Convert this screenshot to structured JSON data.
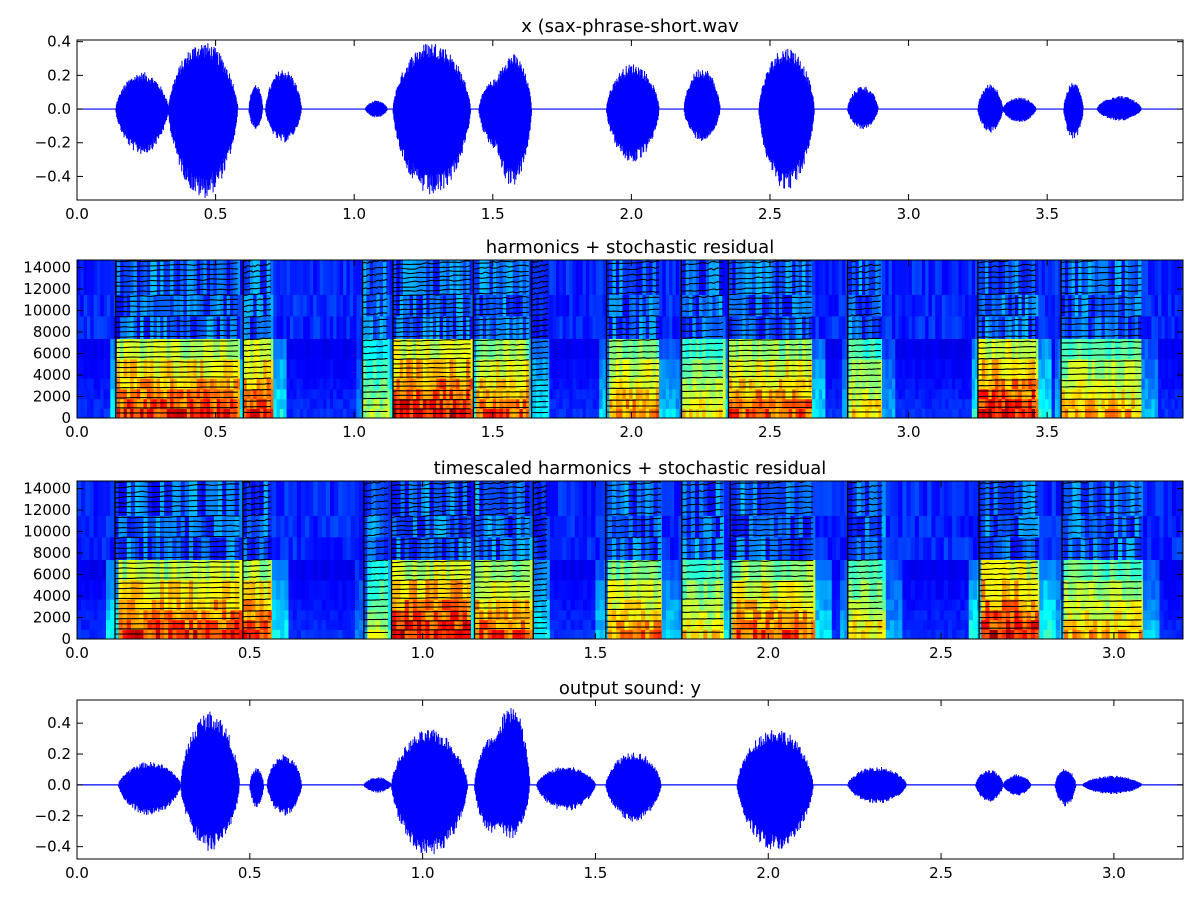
{
  "colors": {
    "waveform": "#0000ff",
    "harmonic_tracks": "#000000",
    "colormap": [
      "#00007f",
      "#0000ff",
      "#0080ff",
      "#00ffff",
      "#80ff80",
      "#ffff00",
      "#ff8000",
      "#ff0000",
      "#7f0000"
    ],
    "axes_frame": "#000000",
    "background": "#ffffff"
  },
  "chart_data": [
    {
      "id": "input",
      "type": "line",
      "title": "x (sax-phrase-short.wav",
      "xlabel": "",
      "ylabel": "",
      "xlim": [
        0,
        3.99
      ],
      "ylim": [
        -0.54,
        0.41
      ],
      "x_ticks": [
        0.0,
        0.5,
        1.0,
        1.5,
        2.0,
        2.5,
        3.0,
        3.5
      ],
      "x_tick_labels": [
        "0.0",
        "0.5",
        "1.0",
        "1.5",
        "2.0",
        "2.5",
        "3.0",
        "3.5"
      ],
      "y_ticks": [
        0.4,
        0.2,
        0.0,
        -0.2,
        -0.4
      ],
      "y_tick_labels": [
        "0.4",
        "0.2",
        "0.0",
        "−0.2",
        "−0.4"
      ],
      "grid": false,
      "envelope_segments": [
        {
          "start": 0.14,
          "end": 0.33,
          "peak": 0.22,
          "trough": -0.27
        },
        {
          "start": 0.33,
          "end": 0.58,
          "peak": 0.4,
          "trough": -0.53
        },
        {
          "start": 0.62,
          "end": 0.67,
          "peak": 0.15,
          "trough": -0.12
        },
        {
          "start": 0.68,
          "end": 0.81,
          "peak": 0.24,
          "trough": -0.2
        },
        {
          "start": 1.04,
          "end": 1.12,
          "peak": 0.05,
          "trough": -0.05
        },
        {
          "start": 1.14,
          "end": 1.42,
          "peak": 0.4,
          "trough": -0.52
        },
        {
          "start": 1.45,
          "end": 1.58,
          "peak": 0.18,
          "trough": -0.24
        },
        {
          "start": 1.5,
          "end": 1.64,
          "peak": 0.33,
          "trough": -0.46
        },
        {
          "start": 1.91,
          "end": 2.1,
          "peak": 0.27,
          "trough": -0.32
        },
        {
          "start": 2.19,
          "end": 2.32,
          "peak": 0.25,
          "trough": -0.19
        },
        {
          "start": 2.46,
          "end": 2.66,
          "peak": 0.37,
          "trough": -0.48
        },
        {
          "start": 2.78,
          "end": 2.89,
          "peak": 0.14,
          "trough": -0.12
        },
        {
          "start": 3.25,
          "end": 3.34,
          "peak": 0.15,
          "trough": -0.14
        },
        {
          "start": 3.34,
          "end": 3.46,
          "peak": 0.07,
          "trough": -0.08
        },
        {
          "start": 3.56,
          "end": 3.63,
          "peak": 0.16,
          "trough": -0.18
        },
        {
          "start": 3.68,
          "end": 3.84,
          "peak": 0.08,
          "trough": -0.07
        }
      ]
    },
    {
      "id": "harmonics",
      "type": "heatmap",
      "title": "harmonics + stochastic residual",
      "xlabel": "",
      "ylabel": "",
      "xlim": [
        0,
        3.99
      ],
      "ylim": [
        0,
        14700
      ],
      "x_ticks": [
        0.0,
        0.5,
        1.0,
        1.5,
        2.0,
        2.5,
        3.0,
        3.5
      ],
      "x_tick_labels": [
        "0.0",
        "0.5",
        "1.0",
        "1.5",
        "2.0",
        "2.5",
        "3.0",
        "3.5"
      ],
      "y_ticks": [
        0,
        2000,
        4000,
        6000,
        8000,
        10000,
        12000,
        14000
      ],
      "y_tick_labels": [
        "0",
        "2000",
        "4000",
        "6000",
        "8000",
        "10000",
        "12000",
        "14000"
      ],
      "grid": false,
      "notes_segments": [
        {
          "start": 0.14,
          "end": 0.58,
          "f0": 470,
          "level": 0.9
        },
        {
          "start": 0.6,
          "end": 0.7,
          "f0": 520,
          "level": 0.9
        },
        {
          "start": 1.03,
          "end": 1.12,
          "f0": 600,
          "level": 0.6
        },
        {
          "start": 1.14,
          "end": 1.42,
          "f0": 420,
          "level": 0.95
        },
        {
          "start": 1.43,
          "end": 1.63,
          "f0": 480,
          "level": 0.85
        },
        {
          "start": 1.64,
          "end": 1.7,
          "f0": 500,
          "level": 0.4
        },
        {
          "start": 1.91,
          "end": 2.1,
          "f0": 550,
          "level": 0.8
        },
        {
          "start": 2.18,
          "end": 2.33,
          "f0": 620,
          "level": 0.7
        },
        {
          "start": 2.35,
          "end": 2.65,
          "f0": 480,
          "level": 0.85
        },
        {
          "start": 2.78,
          "end": 2.9,
          "f0": 560,
          "level": 0.7
        },
        {
          "start": 3.25,
          "end": 3.46,
          "f0": 500,
          "level": 0.95
        },
        {
          "start": 3.55,
          "end": 3.84,
          "f0": 580,
          "level": 0.75
        }
      ]
    },
    {
      "id": "timescaled",
      "type": "heatmap",
      "title": "timescaled harmonics + stochastic residual",
      "xlabel": "",
      "ylabel": "",
      "xlim": [
        0,
        3.2
      ],
      "ylim": [
        0,
        14700
      ],
      "x_ticks": [
        0.0,
        0.5,
        1.0,
        1.5,
        2.0,
        2.5,
        3.0
      ],
      "x_tick_labels": [
        "0.0",
        "0.5",
        "1.0",
        "1.5",
        "2.0",
        "2.5",
        "3.0"
      ],
      "y_ticks": [
        0,
        2000,
        4000,
        6000,
        8000,
        10000,
        12000,
        14000
      ],
      "y_tick_labels": [
        "0",
        "2000",
        "4000",
        "6000",
        "8000",
        "10000",
        "12000",
        "14000"
      ],
      "grid": false,
      "notes_segments": [
        {
          "start": 0.11,
          "end": 0.47,
          "f0": 470,
          "level": 0.9
        },
        {
          "start": 0.48,
          "end": 0.56,
          "f0": 520,
          "level": 0.9
        },
        {
          "start": 0.83,
          "end": 0.9,
          "f0": 600,
          "level": 0.6
        },
        {
          "start": 0.91,
          "end": 1.14,
          "f0": 420,
          "level": 0.95
        },
        {
          "start": 1.15,
          "end": 1.31,
          "f0": 480,
          "level": 0.85
        },
        {
          "start": 1.32,
          "end": 1.36,
          "f0": 500,
          "level": 0.4
        },
        {
          "start": 1.53,
          "end": 1.69,
          "f0": 550,
          "level": 0.8
        },
        {
          "start": 1.75,
          "end": 1.87,
          "f0": 620,
          "level": 0.7
        },
        {
          "start": 1.89,
          "end": 2.13,
          "f0": 480,
          "level": 0.85
        },
        {
          "start": 2.23,
          "end": 2.33,
          "f0": 560,
          "level": 0.7
        },
        {
          "start": 2.61,
          "end": 2.78,
          "f0": 500,
          "level": 0.95
        },
        {
          "start": 2.85,
          "end": 3.08,
          "f0": 580,
          "level": 0.75
        }
      ]
    },
    {
      "id": "output",
      "type": "line",
      "title": "output sound: y",
      "xlabel": "",
      "ylabel": "",
      "xlim": [
        0,
        3.2
      ],
      "ylim": [
        -0.48,
        0.55
      ],
      "x_ticks": [
        0.0,
        0.5,
        1.0,
        1.5,
        2.0,
        2.5,
        3.0
      ],
      "x_tick_labels": [
        "0.0",
        "0.5",
        "1.0",
        "1.5",
        "2.0",
        "2.5",
        "3.0"
      ],
      "y_ticks": [
        0.4,
        0.2,
        0.0,
        -0.2,
        -0.4
      ],
      "y_tick_labels": [
        "0.4",
        "0.2",
        "0.0",
        "−0.2",
        "−0.4"
      ],
      "grid": false,
      "envelope_segments": [
        {
          "start": 0.12,
          "end": 0.3,
          "peak": 0.15,
          "trough": -0.2
        },
        {
          "start": 0.3,
          "end": 0.47,
          "peak": 0.48,
          "trough": -0.43
        },
        {
          "start": 0.5,
          "end": 0.54,
          "peak": 0.11,
          "trough": -0.15
        },
        {
          "start": 0.55,
          "end": 0.65,
          "peak": 0.2,
          "trough": -0.2
        },
        {
          "start": 0.83,
          "end": 0.91,
          "peak": 0.05,
          "trough": -0.05
        },
        {
          "start": 0.91,
          "end": 1.13,
          "peak": 0.36,
          "trough": -0.47
        },
        {
          "start": 1.15,
          "end": 1.26,
          "peak": 0.32,
          "trough": -0.33
        },
        {
          "start": 1.2,
          "end": 1.31,
          "peak": 0.53,
          "trough": -0.35
        },
        {
          "start": 1.33,
          "end": 1.5,
          "peak": 0.12,
          "trough": -0.17
        },
        {
          "start": 1.53,
          "end": 1.69,
          "peak": 0.22,
          "trough": -0.24
        },
        {
          "start": 1.91,
          "end": 2.13,
          "peak": 0.37,
          "trough": -0.43
        },
        {
          "start": 2.23,
          "end": 2.4,
          "peak": 0.12,
          "trough": -0.12
        },
        {
          "start": 2.6,
          "end": 2.68,
          "peak": 0.1,
          "trough": -0.11
        },
        {
          "start": 2.68,
          "end": 2.76,
          "peak": 0.07,
          "trough": -0.07
        },
        {
          "start": 2.83,
          "end": 2.89,
          "peak": 0.11,
          "trough": -0.14
        },
        {
          "start": 2.91,
          "end": 3.08,
          "peak": 0.06,
          "trough": -0.06
        }
      ]
    }
  ]
}
